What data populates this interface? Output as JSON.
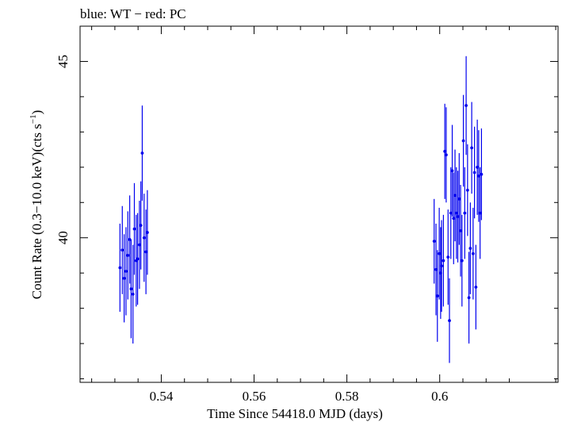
{
  "chart_data": {
    "type": "scatter",
    "title": "blue: WT − red: PC",
    "xlabel": "Time Since 54418.0 MJD (days)",
    "ylabel": "Count Rate (0.3−10.0 keV)(cts s",
    "ylabel_sup": "−1",
    "ylabel_close": ")",
    "xlim": [
      0.5225,
      0.6255
    ],
    "ylim": [
      35.9,
      46.0
    ],
    "x_ticks": [
      {
        "value": 0.54,
        "label": "0.54"
      },
      {
        "value": 0.56,
        "label": "0.56"
      },
      {
        "value": 0.58,
        "label": "0.58"
      },
      {
        "value": 0.6,
        "label": "0.6"
      }
    ],
    "y_ticks": [
      {
        "value": 40,
        "label": "40"
      },
      {
        "value": 45,
        "label": "45"
      }
    ],
    "series": [
      {
        "name": "WT",
        "color": "#0000ee",
        "points": [
          {
            "x": 0.5311,
            "y": 39.15,
            "err": 1.25
          },
          {
            "x": 0.5316,
            "y": 39.65,
            "err": 1.25
          },
          {
            "x": 0.532,
            "y": 38.85,
            "err": 1.25
          },
          {
            "x": 0.5324,
            "y": 39.05,
            "err": 1.25
          },
          {
            "x": 0.5328,
            "y": 39.5,
            "err": 1.25
          },
          {
            "x": 0.5332,
            "y": 39.95,
            "err": 1.25
          },
          {
            "x": 0.5335,
            "y": 38.55,
            "err": 1.4
          },
          {
            "x": 0.5339,
            "y": 38.4,
            "err": 1.4
          },
          {
            "x": 0.5342,
            "y": 40.25,
            "err": 1.3
          },
          {
            "x": 0.5346,
            "y": 39.35,
            "err": 1.3
          },
          {
            "x": 0.5349,
            "y": 39.4,
            "err": 1.3
          },
          {
            "x": 0.5353,
            "y": 39.8,
            "err": 1.25
          },
          {
            "x": 0.5356,
            "y": 40.35,
            "err": 1.25
          },
          {
            "x": 0.5359,
            "y": 42.4,
            "err": 1.35
          },
          {
            "x": 0.5363,
            "y": 40.0,
            "err": 1.25
          },
          {
            "x": 0.5367,
            "y": 39.6,
            "err": 1.2
          },
          {
            "x": 0.537,
            "y": 40.15,
            "err": 1.2
          }
        ]
      },
      {
        "name": "PC",
        "color": "#0000ee",
        "points": [
          {
            "x": 0.5988,
            "y": 39.9,
            "err": 1.2
          },
          {
            "x": 0.5992,
            "y": 39.1,
            "err": 1.3
          },
          {
            "x": 0.5995,
            "y": 38.35,
            "err": 1.3
          },
          {
            "x": 0.5999,
            "y": 39.55,
            "err": 1.3
          },
          {
            "x": 0.6002,
            "y": 39.0,
            "err": 1.3
          },
          {
            "x": 0.6004,
            "y": 39.2,
            "err": 1.3
          },
          {
            "x": 0.6008,
            "y": 39.35,
            "err": 1.3
          },
          {
            "x": 0.6011,
            "y": 42.45,
            "err": 1.35
          },
          {
            "x": 0.6014,
            "y": 42.35,
            "err": 1.35
          },
          {
            "x": 0.6018,
            "y": 39.45,
            "err": 1.35
          },
          {
            "x": 0.6021,
            "y": 37.65,
            "err": 1.2
          },
          {
            "x": 0.6024,
            "y": 40.7,
            "err": 1.3
          },
          {
            "x": 0.6027,
            "y": 41.9,
            "err": 1.3
          },
          {
            "x": 0.603,
            "y": 40.55,
            "err": 1.3
          },
          {
            "x": 0.6033,
            "y": 41.2,
            "err": 1.3
          },
          {
            "x": 0.6036,
            "y": 40.7,
            "err": 1.3
          },
          {
            "x": 0.6039,
            "y": 40.6,
            "err": 1.3
          },
          {
            "x": 0.6042,
            "y": 41.1,
            "err": 1.3
          },
          {
            "x": 0.6045,
            "y": 40.2,
            "err": 1.3
          },
          {
            "x": 0.6048,
            "y": 39.35,
            "err": 1.3
          },
          {
            "x": 0.6051,
            "y": 42.75,
            "err": 1.3
          },
          {
            "x": 0.6054,
            "y": 40.7,
            "err": 1.3
          },
          {
            "x": 0.6057,
            "y": 43.75,
            "err": 1.4
          },
          {
            "x": 0.606,
            "y": 41.35,
            "err": 1.3
          },
          {
            "x": 0.6063,
            "y": 38.3,
            "err": 1.3
          },
          {
            "x": 0.6066,
            "y": 39.7,
            "err": 1.3
          },
          {
            "x": 0.6069,
            "y": 42.55,
            "err": 1.3
          },
          {
            "x": 0.6072,
            "y": 39.55,
            "err": 1.3
          },
          {
            "x": 0.6075,
            "y": 41.85,
            "err": 1.3
          },
          {
            "x": 0.6078,
            "y": 38.6,
            "err": 1.2
          },
          {
            "x": 0.6081,
            "y": 42.0,
            "err": 1.35
          },
          {
            "x": 0.6084,
            "y": 41.75,
            "err": 1.3
          },
          {
            "x": 0.6087,
            "y": 40.7,
            "err": 1.3
          },
          {
            "x": 0.609,
            "y": 41.8,
            "err": 1.3
          }
        ]
      }
    ]
  }
}
